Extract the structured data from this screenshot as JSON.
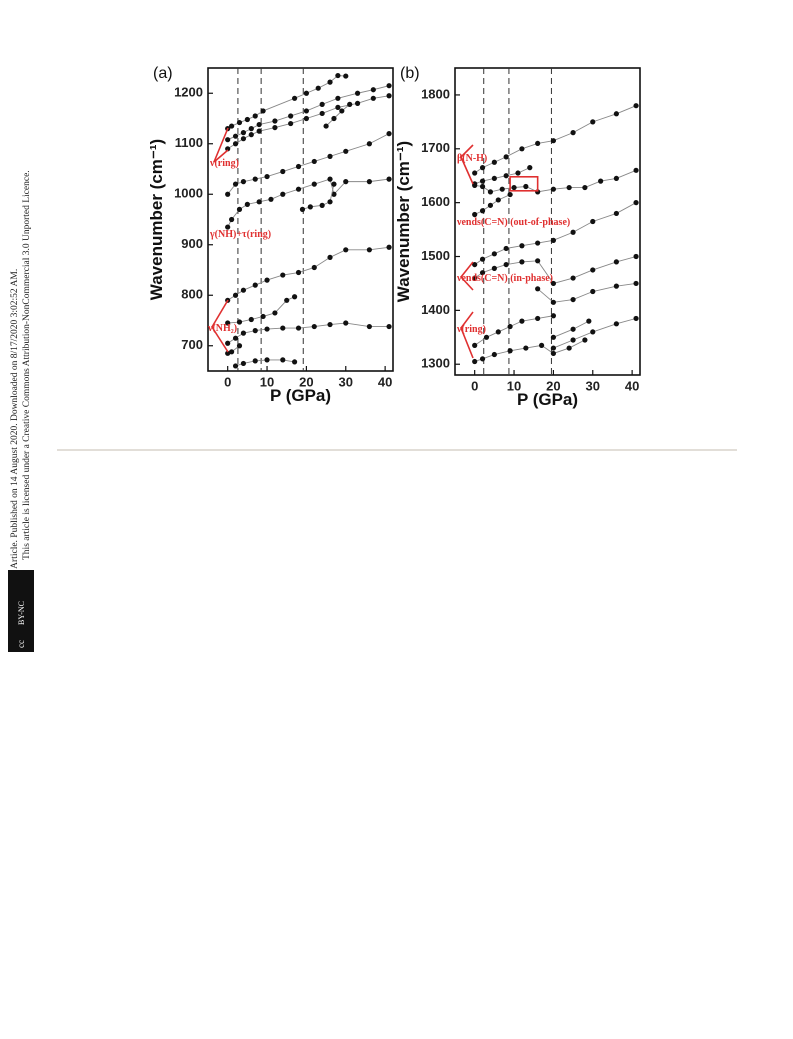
{
  "sidebar": {
    "lines": [
      "Open Access Article. Published on 14 August 2020. Downloaded on 8/17/2020 3:02:52 AM.",
      "This article is licensed under a Creative Commons Attribution-NonCommercial 3.0 Unported Licence."
    ],
    "badge": [
      "cc",
      "BY-NC"
    ]
  },
  "chart_data": [
    {
      "type": "scatter-line",
      "title": "(a)",
      "x_label": "P (GPa)",
      "y_label": "Wavenumber (cm⁻¹)",
      "xlim": [
        -5,
        42
      ],
      "ylim": [
        650,
        1250
      ],
      "xticks": [
        0,
        10,
        20,
        30,
        40
      ],
      "yticks": [
        700,
        800,
        900,
        1000,
        1100,
        1200
      ],
      "vlines": [
        2.6,
        8.5,
        19.2
      ],
      "color": "#111111",
      "line_color": "#888888",
      "annotation_color": "#e03030",
      "annotations": [
        "ν(ring)",
        "γ(NH)+τ(ring)",
        "ν(NH₂)"
      ],
      "series": [
        {
          "x": [
            0,
            1,
            3,
            5,
            7,
            9,
            17,
            20,
            23,
            26,
            28,
            30
          ],
          "values": [
            1130,
            1135,
            1142,
            1148,
            1155,
            1165,
            1190,
            1200,
            1210,
            1222,
            1235,
            1234
          ]
        },
        {
          "x": [
            0,
            2,
            4,
            6,
            8,
            12,
            16,
            20,
            24,
            28,
            33,
            37,
            41
          ],
          "values": [
            1108,
            1115,
            1122,
            1130,
            1138,
            1145,
            1155,
            1165,
            1178,
            1190,
            1200,
            1207,
            1215
          ]
        },
        {
          "x": [
            0,
            2,
            4,
            6,
            8,
            12,
            16,
            20,
            24,
            28,
            33,
            37,
            41
          ],
          "values": [
            1090,
            1100,
            1110,
            1118,
            1125,
            1132,
            1140,
            1150,
            1160,
            1172,
            1180,
            1190,
            1195
          ]
        },
        {
          "x": [
            25,
            27,
            29,
            31
          ],
          "values": [
            1135,
            1150,
            1165,
            1178
          ]
        },
        {
          "x": [
            0,
            2,
            4,
            7,
            10,
            14,
            18,
            22,
            26,
            30,
            36,
            41
          ],
          "values": [
            1000,
            1020,
            1025,
            1030,
            1035,
            1045,
            1055,
            1065,
            1075,
            1085,
            1100,
            1120
          ]
        },
        {
          "x": [
            0,
            1,
            3,
            5,
            8,
            11,
            14,
            18,
            22,
            26,
            27,
            30,
            36,
            41
          ],
          "values": [
            935,
            950,
            970,
            980,
            985,
            990,
            1000,
            1010,
            1020,
            1030,
            1000,
            1025,
            1025,
            1030
          ]
        },
        {
          "x": [
            19,
            21,
            24,
            26,
            27
          ],
          "values": [
            970,
            975,
            978,
            985,
            1020
          ]
        },
        {
          "x": [
            0,
            2,
            4,
            7,
            10,
            14,
            18,
            22,
            26,
            30,
            36,
            41
          ],
          "values": [
            790,
            800,
            810,
            820,
            830,
            840,
            845,
            855,
            875,
            890,
            890,
            895
          ]
        },
        {
          "x": [
            0,
            3,
            6,
            9,
            12,
            15,
            17
          ],
          "values": [
            745,
            747,
            752,
            758,
            765,
            790,
            797
          ]
        },
        {
          "x": [
            0,
            2,
            4,
            7,
            10,
            14,
            18,
            22,
            26,
            30,
            36,
            41
          ],
          "values": [
            705,
            715,
            725,
            730,
            733,
            735,
            735,
            738,
            742,
            745,
            738,
            738
          ]
        },
        {
          "x": [
            0,
            1,
            3
          ],
          "values": [
            685,
            688,
            700
          ]
        },
        {
          "x": [
            2,
            4,
            7,
            10,
            14,
            17
          ],
          "values": [
            660,
            665,
            670,
            672,
            672,
            668
          ]
        }
      ]
    },
    {
      "type": "scatter-line",
      "title": "(b)",
      "x_label": "P (GPa)",
      "y_label": "Wavenumber (cm⁻¹)",
      "xlim": [
        -5,
        42
      ],
      "ylim": [
        1280,
        1850
      ],
      "xticks": [
        0,
        10,
        20,
        30,
        40
      ],
      "yticks": [
        1300,
        1400,
        1500,
        1600,
        1700,
        1800
      ],
      "vlines": [
        2.3,
        8.7,
        19.5
      ],
      "color": "#111111",
      "line_color": "#888888",
      "annotation_color": "#e03030",
      "annotations": [
        "β(N-H)",
        "νends(C=N) (out-of-phase)",
        "νends(C=N) (in-phase)",
        "ν(ring)"
      ],
      "series": [
        {
          "x": [
            0,
            2,
            5,
            8,
            12,
            16,
            20,
            25,
            30,
            36,
            41
          ],
          "values": [
            1655,
            1665,
            1675,
            1685,
            1700,
            1710,
            1715,
            1730,
            1750,
            1765,
            1780
          ]
        },
        {
          "x": [
            0,
            2,
            5,
            8,
            11,
            14
          ],
          "values": [
            1635,
            1640,
            1645,
            1650,
            1655,
            1665
          ]
        },
        {
          "x": [
            0,
            2,
            4,
            7,
            10,
            13,
            16,
            20,
            24,
            28,
            32,
            36,
            41
          ],
          "values": [
            1632,
            1630,
            1620,
            1625,
            1628,
            1630,
            1620,
            1625,
            1628,
            1628,
            1640,
            1645,
            1660
          ]
        },
        {
          "x": [
            0,
            2,
            4,
            6,
            9
          ],
          "values": [
            1578,
            1585,
            1595,
            1605,
            1615
          ]
        },
        {
          "x": [
            0,
            2,
            5,
            8,
            12,
            16,
            20,
            25,
            30,
            36,
            41
          ],
          "values": [
            1485,
            1495,
            1505,
            1515,
            1520,
            1525,
            1530,
            1545,
            1565,
            1580,
            1600
          ]
        },
        {
          "x": [
            0,
            2,
            5,
            8,
            12,
            16,
            20,
            25,
            30,
            36,
            41
          ],
          "values": [
            1460,
            1470,
            1478,
            1485,
            1490,
            1492,
            1450,
            1460,
            1475,
            1490,
            1500
          ]
        },
        {
          "x": [
            16,
            20,
            25,
            30,
            36,
            41
          ],
          "values": [
            1440,
            1415,
            1420,
            1435,
            1445,
            1450
          ]
        },
        {
          "x": [
            0,
            3,
            6,
            9,
            12,
            16,
            20
          ],
          "values": [
            1335,
            1350,
            1360,
            1370,
            1380,
            1385,
            1390
          ]
        },
        {
          "x": [
            0,
            2,
            5,
            9,
            13,
            17,
            20,
            24,
            28
          ],
          "values": [
            1305,
            1310,
            1318,
            1325,
            1330,
            1335,
            1320,
            1330,
            1345
          ]
        },
        {
          "x": [
            20,
            25,
            30,
            36,
            41
          ],
          "values": [
            1330,
            1345,
            1360,
            1375,
            1385
          ]
        },
        {
          "x": [
            20,
            25,
            29
          ],
          "values": [
            1350,
            1365,
            1380
          ]
        }
      ]
    }
  ]
}
